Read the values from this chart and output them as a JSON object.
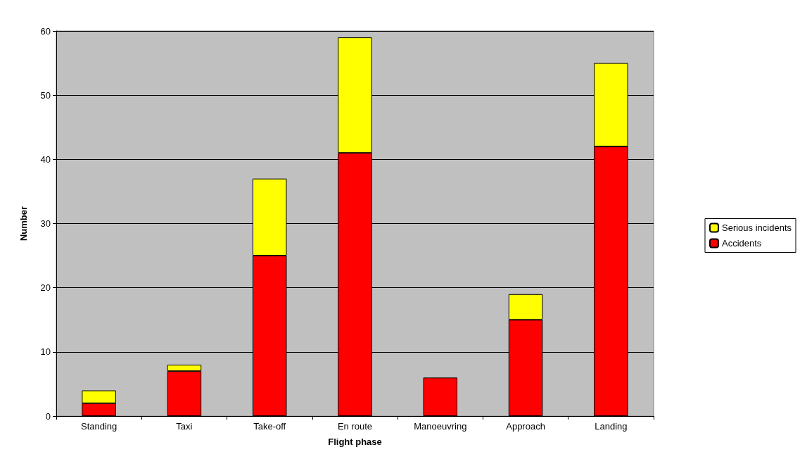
{
  "chart_data": {
    "type": "bar",
    "stacked": true,
    "xlabel": "Flight phase",
    "ylabel": "Number",
    "categories": [
      "Standing",
      "Taxi",
      "Take-off",
      "En route",
      "Manoeuvring",
      "Approach",
      "Landing"
    ],
    "series": [
      {
        "name": "Accidents",
        "color": "#ff0000",
        "values": [
          2,
          7,
          25,
          41,
          6,
          15,
          42
        ]
      },
      {
        "name": "Serious incidents",
        "color": "#ffff00",
        "values": [
          2,
          1,
          12,
          18,
          0,
          4,
          13
        ]
      }
    ],
    "ylim": [
      0,
      60
    ],
    "yticks": [
      0,
      10,
      20,
      30,
      40,
      50,
      60
    ],
    "grid": "y",
    "legend": "right"
  }
}
